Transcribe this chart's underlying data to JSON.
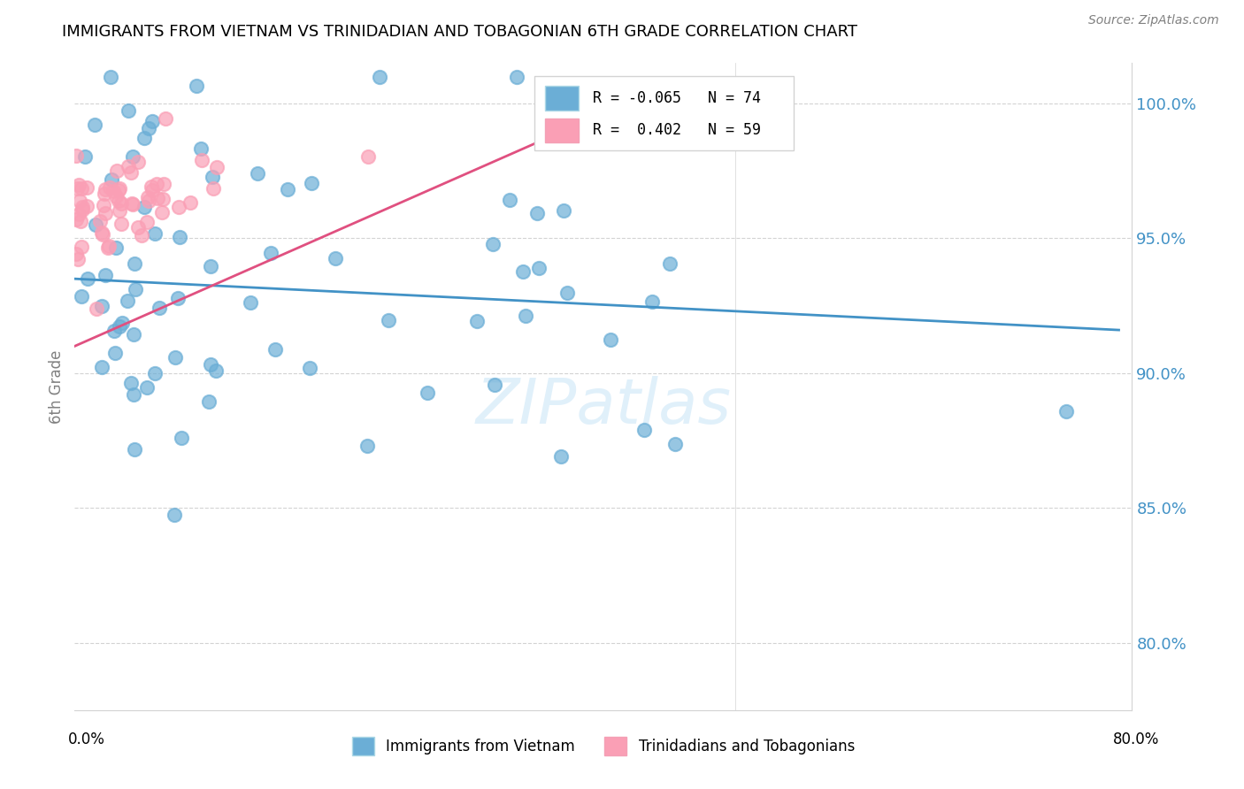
{
  "title": "IMMIGRANTS FROM VIETNAM VS TRINIDADIAN AND TOBAGONIAN 6TH GRADE CORRELATION CHART",
  "source": "Source: ZipAtlas.com",
  "ylabel": "6th Grade",
  "ytick_values": [
    0.8,
    0.85,
    0.9,
    0.95,
    1.0
  ],
  "xlim": [
    0.0,
    0.8
  ],
  "ylim": [
    0.775,
    1.015
  ],
  "legend_R_blue": "-0.065",
  "legend_N_blue": "74",
  "legend_R_pink": "0.402",
  "legend_N_pink": "59",
  "color_blue": "#6baed6",
  "color_pink": "#fa9fb5",
  "trendline_blue_color": "#4292c6",
  "trendline_pink_color": "#e05080",
  "watermark": "ZIPatlas",
  "blue_n": 74,
  "pink_n": 59,
  "blue_trend": [
    0.0,
    0.79,
    0.935,
    0.916
  ],
  "pink_trend": [
    0.0,
    0.44,
    0.91,
    1.005
  ]
}
